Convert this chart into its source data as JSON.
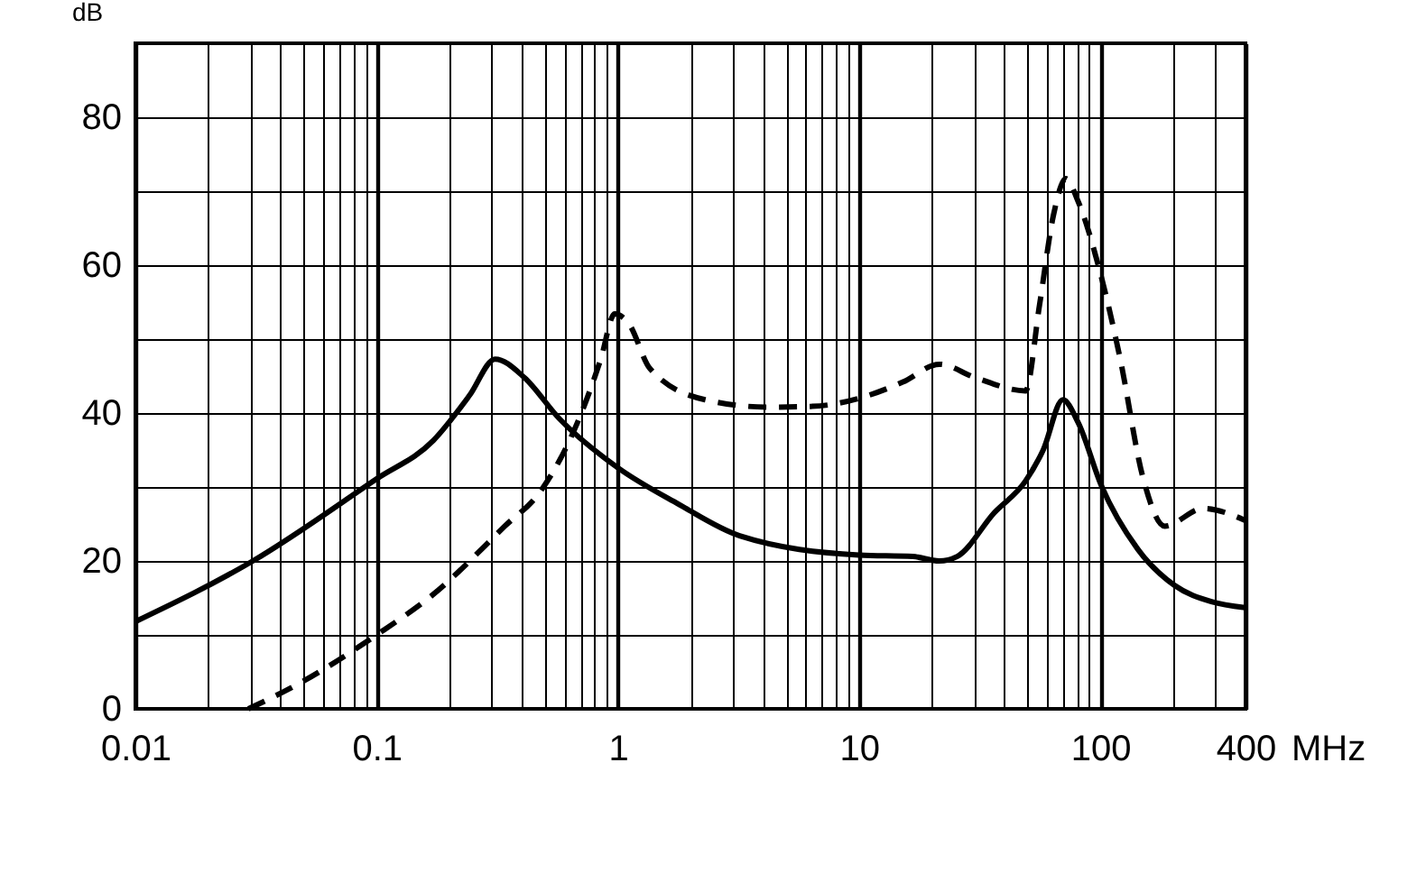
{
  "chart_data": {
    "type": "line",
    "xlabel": "MHz",
    "ylabel": "dB",
    "log": "x",
    "grid": true,
    "xlim": [
      0.01,
      400
    ],
    "xticks": [
      0.01,
      {
        "value": 0.02,
        "label": null
      },
      {
        "value": 0.03,
        "label": null
      },
      {
        "value": 0.04,
        "label": null
      },
      {
        "value": 0.05,
        "label": null
      },
      {
        "value": 0.06,
        "label": null
      },
      {
        "value": 0.07,
        "label": null
      },
      {
        "value": 0.08,
        "label": null
      },
      {
        "value": 0.09,
        "label": null
      },
      0.1,
      {
        "value": 0.2,
        "label": null
      },
      {
        "value": 0.3,
        "label": null
      },
      {
        "value": 0.4,
        "label": null
      },
      {
        "value": 0.5,
        "label": null
      },
      {
        "value": 0.6,
        "label": null
      },
      {
        "value": 0.7,
        "label": null
      },
      {
        "value": 0.8,
        "label": null
      },
      {
        "value": 0.9,
        "label": null
      },
      1,
      {
        "value": 2,
        "label": null
      },
      {
        "value": 3,
        "label": null
      },
      {
        "value": 4,
        "label": null
      },
      {
        "value": 5,
        "label": null
      },
      {
        "value": 6,
        "label": null
      },
      {
        "value": 7,
        "label": null
      },
      {
        "value": 8,
        "label": null
      },
      {
        "value": 9,
        "label": null
      },
      10,
      {
        "value": 20,
        "label": null
      },
      {
        "value": 30,
        "label": null
      },
      {
        "value": 40,
        "label": null
      },
      {
        "value": 50,
        "label": null
      },
      {
        "value": 60,
        "label": null
      },
      {
        "value": 70,
        "label": null
      },
      {
        "value": 80,
        "label": null
      },
      {
        "value": 90,
        "label": null
      },
      100,
      {
        "value": 200,
        "label": null
      },
      {
        "value": 300,
        "label": null
      },
      400
    ],
    "ylim": [
      0,
      90
    ],
    "yticks": [
      0,
      {
        "value": 10,
        "label": null
      },
      20,
      {
        "value": 30,
        "label": null
      },
      40,
      {
        "value": 50,
        "label": null
      },
      60,
      {
        "value": 70,
        "label": null
      },
      80,
      {
        "value": 90,
        "label": null
      }
    ],
    "series": [
      {
        "color": "#000000",
        "line_style": "solid",
        "x": [
          0.01,
          0.0307,
          0.1,
          0.172,
          0.243,
          0.31,
          0.41,
          0.57,
          1,
          1.78,
          3.2,
          10,
          16.7,
          21.5,
          25.5,
          36.3,
          49,
          58,
          70,
          81,
          101,
          143,
          203,
          289,
          398
        ],
        "values": [
          11.8,
          20,
          31.1,
          36.3,
          42.4,
          47.3,
          44.8,
          39.3,
          32.6,
          27.7,
          23.4,
          20.8,
          20.6,
          20,
          20.6,
          26.5,
          30.8,
          35,
          41.8,
          38.7,
          30.2,
          21.6,
          16.7,
          14.5,
          13.7
        ]
      },
      {
        "color": "#000000",
        "line_style": "dashed",
        "x": [
          0.0294,
          0.047,
          0.1,
          0.172,
          0.34,
          0.48,
          0.68,
          0.85,
          0.97,
          1.11,
          1.36,
          2.3,
          4.2,
          6.4,
          10,
          15.2,
          21.5,
          30.3,
          49,
          56,
          64,
          72,
          81,
          99,
          121,
          150,
          185,
          267,
          398
        ],
        "values": [
          0,
          3.3,
          10,
          15.5,
          24.7,
          29.5,
          38.7,
          47.3,
          53.4,
          52.1,
          46,
          41.8,
          40.8,
          40.9,
          42,
          44.2,
          46.6,
          44.8,
          43,
          54.6,
          66.8,
          71.7,
          68.6,
          59.5,
          47.3,
          31.4,
          24.7,
          27.1,
          25.5
        ]
      }
    ]
  }
}
